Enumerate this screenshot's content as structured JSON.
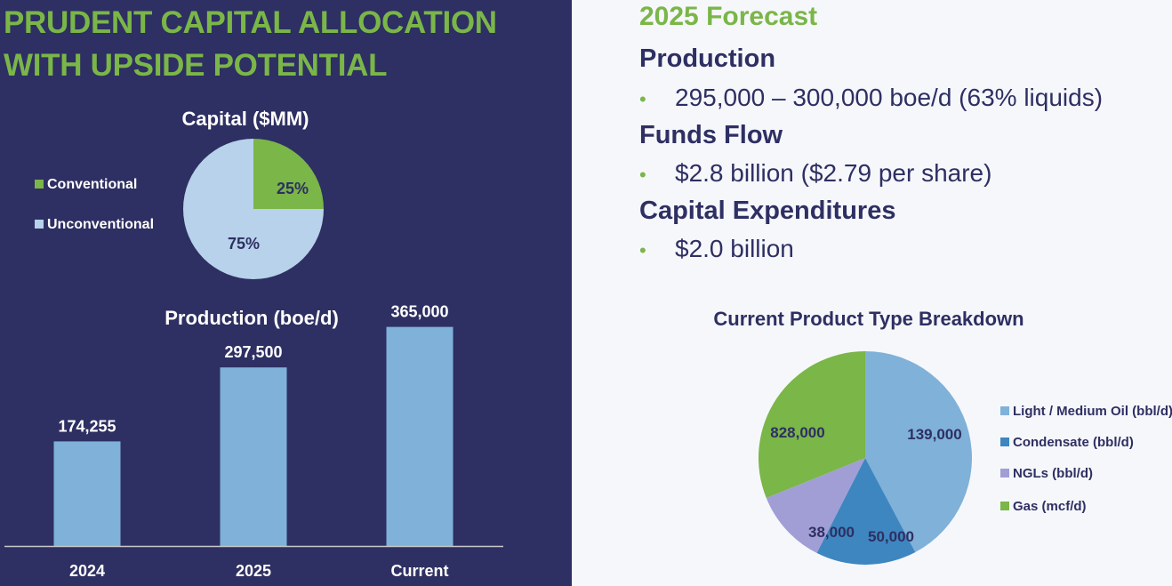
{
  "title_lines": [
    "PRUDENT CAPITAL ALLOCATION",
    "WITH UPSIDE POTENTIAL"
  ],
  "forecast": {
    "title": "2025 Forecast",
    "sections": [
      {
        "heading": "Production",
        "bullet": "295,000 – 300,000 boe/d (63% liquids)"
      },
      {
        "heading": "Funds Flow",
        "bullet": "$2.8 billion ($2.79 per share)"
      },
      {
        "heading": "Capital Expenditures",
        "bullet": "$2.0 billion"
      }
    ]
  },
  "colors": {
    "navy": "#2e2f62",
    "green": "#7ab648",
    "light_blue": "#b7d2ea",
    "bar_blue": "#7fb1d9",
    "oil": "#7fb1d9",
    "condensate": "#3e86c0",
    "ngls": "#a19ed6",
    "gas": "#7ab648"
  },
  "chart_data": [
    {
      "type": "pie",
      "title": "Capital ($MM)",
      "labels": [
        "Conventional",
        "Unconventional"
      ],
      "values": [
        25,
        75
      ],
      "data_labels": [
        "25%",
        "75%"
      ],
      "legend": "left"
    },
    {
      "type": "bar",
      "title": "Production (boe/d)",
      "categories": [
        "2024",
        "2025",
        "Current"
      ],
      "values": [
        174255,
        297500,
        365000
      ],
      "data_labels": [
        "174,255",
        "297,500",
        "365,000"
      ],
      "ylim": [
        0,
        400000
      ]
    },
    {
      "type": "pie",
      "title": "Current Product Type Breakdown",
      "labels": [
        "Light / Medium Oil (bbl/d)",
        "Condensate (bbl/d)",
        "NGLs (bbl/d)",
        "Gas (mcf/d)"
      ],
      "values": [
        139000,
        50000,
        38000,
        828000
      ],
      "data_labels": [
        "139,000",
        "50,000",
        "38,000",
        "828,000"
      ],
      "slice_degrees": [
        152,
        55,
        41,
        112
      ],
      "legend": "right"
    }
  ]
}
